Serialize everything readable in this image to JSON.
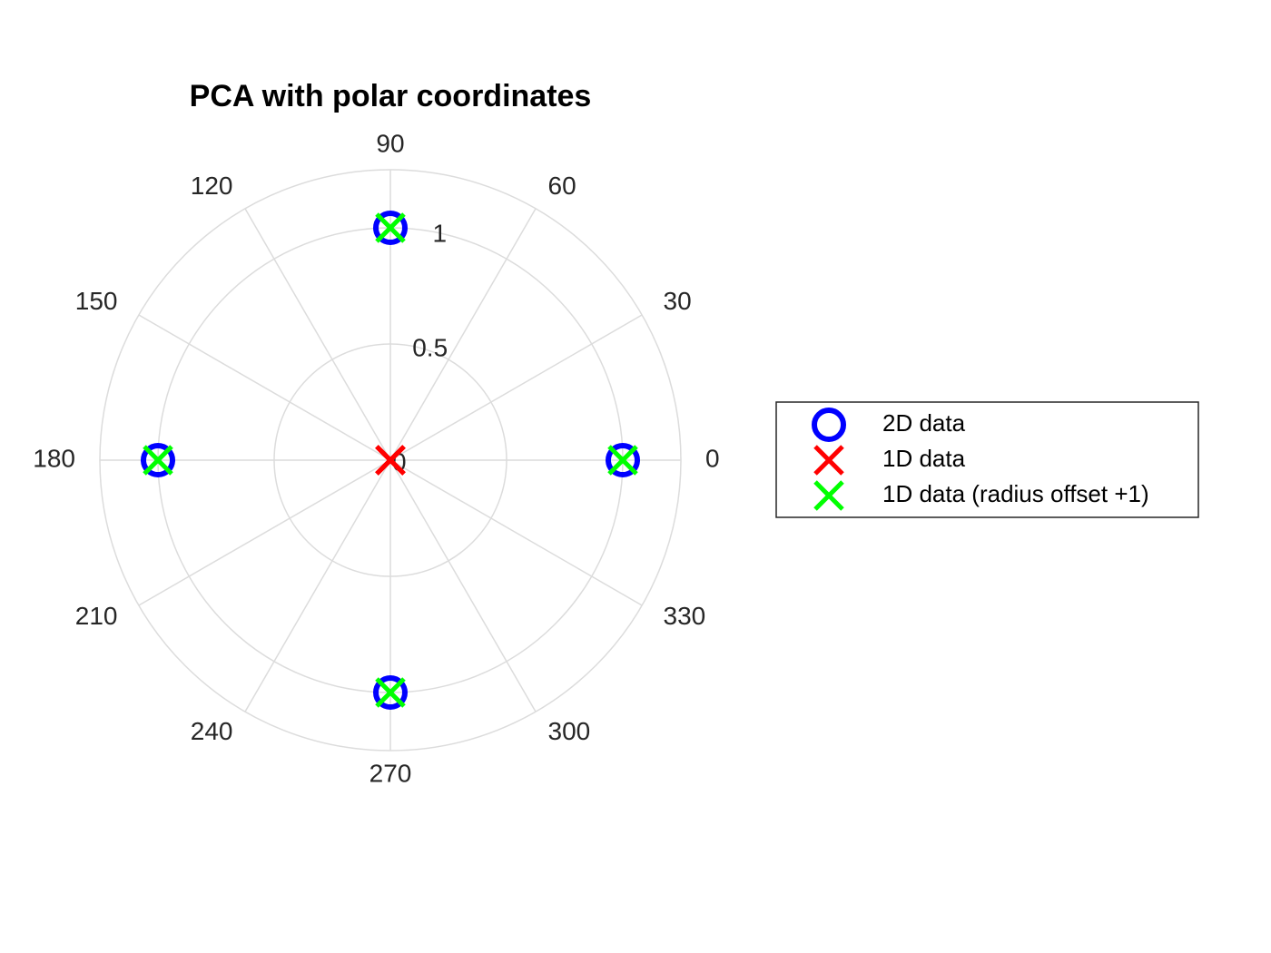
{
  "chart_data": {
    "type": "scatter",
    "title": "PCA with polar coordinates",
    "coordinate_system": "polar",
    "theta_ticks": [
      "0",
      "30",
      "60",
      "90",
      "120",
      "150",
      "180",
      "210",
      "240",
      "270",
      "300",
      "330"
    ],
    "theta_tick_values": [
      0,
      30,
      60,
      90,
      120,
      150,
      180,
      210,
      240,
      270,
      300,
      330
    ],
    "r_ticks": [
      "0",
      "0.5",
      "1"
    ],
    "r_tick_values": [
      0,
      0.5,
      1
    ],
    "rlim": [
      0,
      1.25
    ],
    "r_tick_label_angle": 80,
    "grid": true,
    "legend_position": "right",
    "series": [
      {
        "name": "2D data",
        "marker": "circle",
        "color": "#0000ff",
        "points": [
          {
            "theta": 0,
            "r": 1
          },
          {
            "theta": 90,
            "r": 1
          },
          {
            "theta": 180,
            "r": 1
          },
          {
            "theta": 270,
            "r": 1
          }
        ]
      },
      {
        "name": "1D data",
        "marker": "x",
        "color": "#ff0000",
        "points": [
          {
            "theta": 0,
            "r": 0
          },
          {
            "theta": 90,
            "r": 0
          },
          {
            "theta": 180,
            "r": 0
          },
          {
            "theta": 270,
            "r": 0
          }
        ]
      },
      {
        "name": "1D data (radius offset +1)",
        "marker": "x",
        "color": "#00ff00",
        "points": [
          {
            "theta": 0,
            "r": 1
          },
          {
            "theta": 90,
            "r": 1
          },
          {
            "theta": 180,
            "r": 1
          },
          {
            "theta": 270,
            "r": 1
          }
        ]
      }
    ]
  },
  "colors": {
    "grid": "#dcdcdc",
    "tick_text": "#262626",
    "legend_border": "#262626"
  }
}
